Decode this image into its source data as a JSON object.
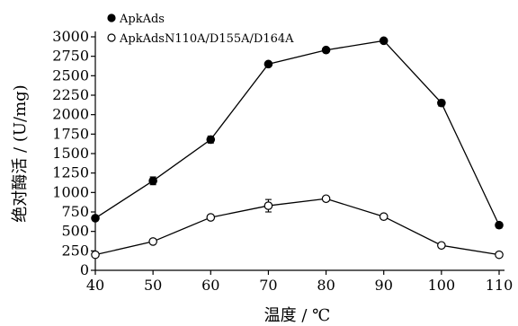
{
  "chart_data": {
    "type": "line",
    "xlabel": "温度 / ℃",
    "ylabel": "绝对酶活 / (U/mg)",
    "x": [
      40,
      50,
      60,
      70,
      80,
      90,
      100,
      110
    ],
    "xlim": [
      40,
      110
    ],
    "ylim": [
      0,
      3000
    ],
    "xticks": [
      40,
      50,
      60,
      70,
      80,
      90,
      100,
      110
    ],
    "yticks": [
      0,
      250,
      500,
      750,
      1000,
      1250,
      1500,
      1750,
      2000,
      2250,
      2500,
      2750,
      3000
    ],
    "error_bars": true,
    "grid": false,
    "legend_position": "top-left",
    "series": [
      {
        "name": "ApkAds",
        "marker": "filled-circle",
        "values": [
          670,
          1150,
          1680,
          2650,
          2830,
          2950,
          2150,
          580
        ],
        "errors": [
          30,
          50,
          45,
          30,
          25,
          20,
          40,
          35
        ]
      },
      {
        "name": "ApkAdsN110A/D155A/D164A",
        "marker": "open-circle",
        "values": [
          200,
          370,
          680,
          830,
          920,
          690,
          320,
          200
        ],
        "errors": [
          15,
          30,
          20,
          80,
          20,
          15,
          15,
          10
        ]
      }
    ]
  }
}
